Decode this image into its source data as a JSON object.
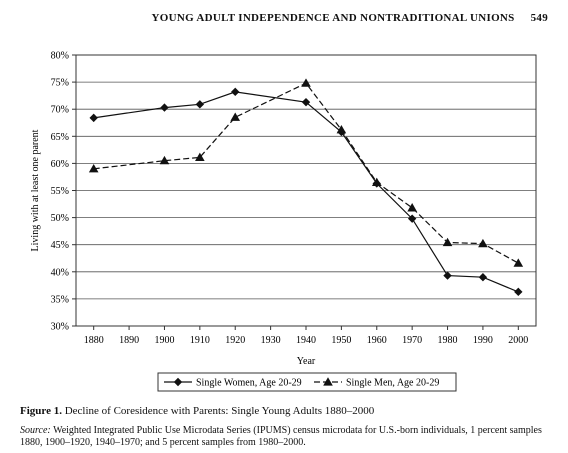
{
  "header": {
    "running_title": "YOUNG ADULT INDEPENDENCE AND NONTRADITIONAL UNIONS",
    "page_number": "549"
  },
  "figure": {
    "label": "Figure 1.",
    "caption": "Decline of Coresidence with Parents: Single Young Adults 1880–2000",
    "source_label": "Source:",
    "source_text": "Weighted Integrated Public Use Microdata Series (IPUMS) census microdata for U.S.-born individuals, 1 percent samples 1880, 1900–1920, 1940–1970; and 5 percent samples from 1980–2000."
  },
  "chart_data": {
    "type": "line",
    "title": "",
    "xlabel": "Year",
    "ylabel": "Living with at least one parent",
    "x_ticks": [
      1880,
      1890,
      1900,
      1910,
      1920,
      1930,
      1940,
      1950,
      1960,
      1970,
      1980,
      1990,
      2000
    ],
    "y_ticks": [
      "30%",
      "35%",
      "40%",
      "45%",
      "50%",
      "55%",
      "60%",
      "65%",
      "70%",
      "75%",
      "80%"
    ],
    "xlim": [
      1875,
      2005
    ],
    "ylim": [
      30,
      80
    ],
    "grid": "horizontal",
    "legend_position": "bottom",
    "series": [
      {
        "name": "Single Women, Age 20-29",
        "marker": "diamond",
        "line_style": "solid",
        "x": [
          1880,
          1900,
          1910,
          1920,
          1940,
          1950,
          1960,
          1970,
          1980,
          1990,
          2000
        ],
        "values": [
          68.4,
          70.3,
          70.9,
          73.2,
          71.3,
          65.8,
          56.3,
          49.8,
          39.3,
          39.0,
          36.3
        ]
      },
      {
        "name": "Single Men, Age 20-29",
        "marker": "triangle",
        "line_style": "dashed",
        "x": [
          1880,
          1900,
          1910,
          1920,
          1940,
          1950,
          1960,
          1970,
          1980,
          1990,
          2000
        ],
        "values": [
          59.0,
          60.5,
          61.1,
          68.5,
          74.8,
          66.2,
          56.5,
          51.8,
          45.4,
          45.2,
          41.6
        ]
      }
    ]
  }
}
